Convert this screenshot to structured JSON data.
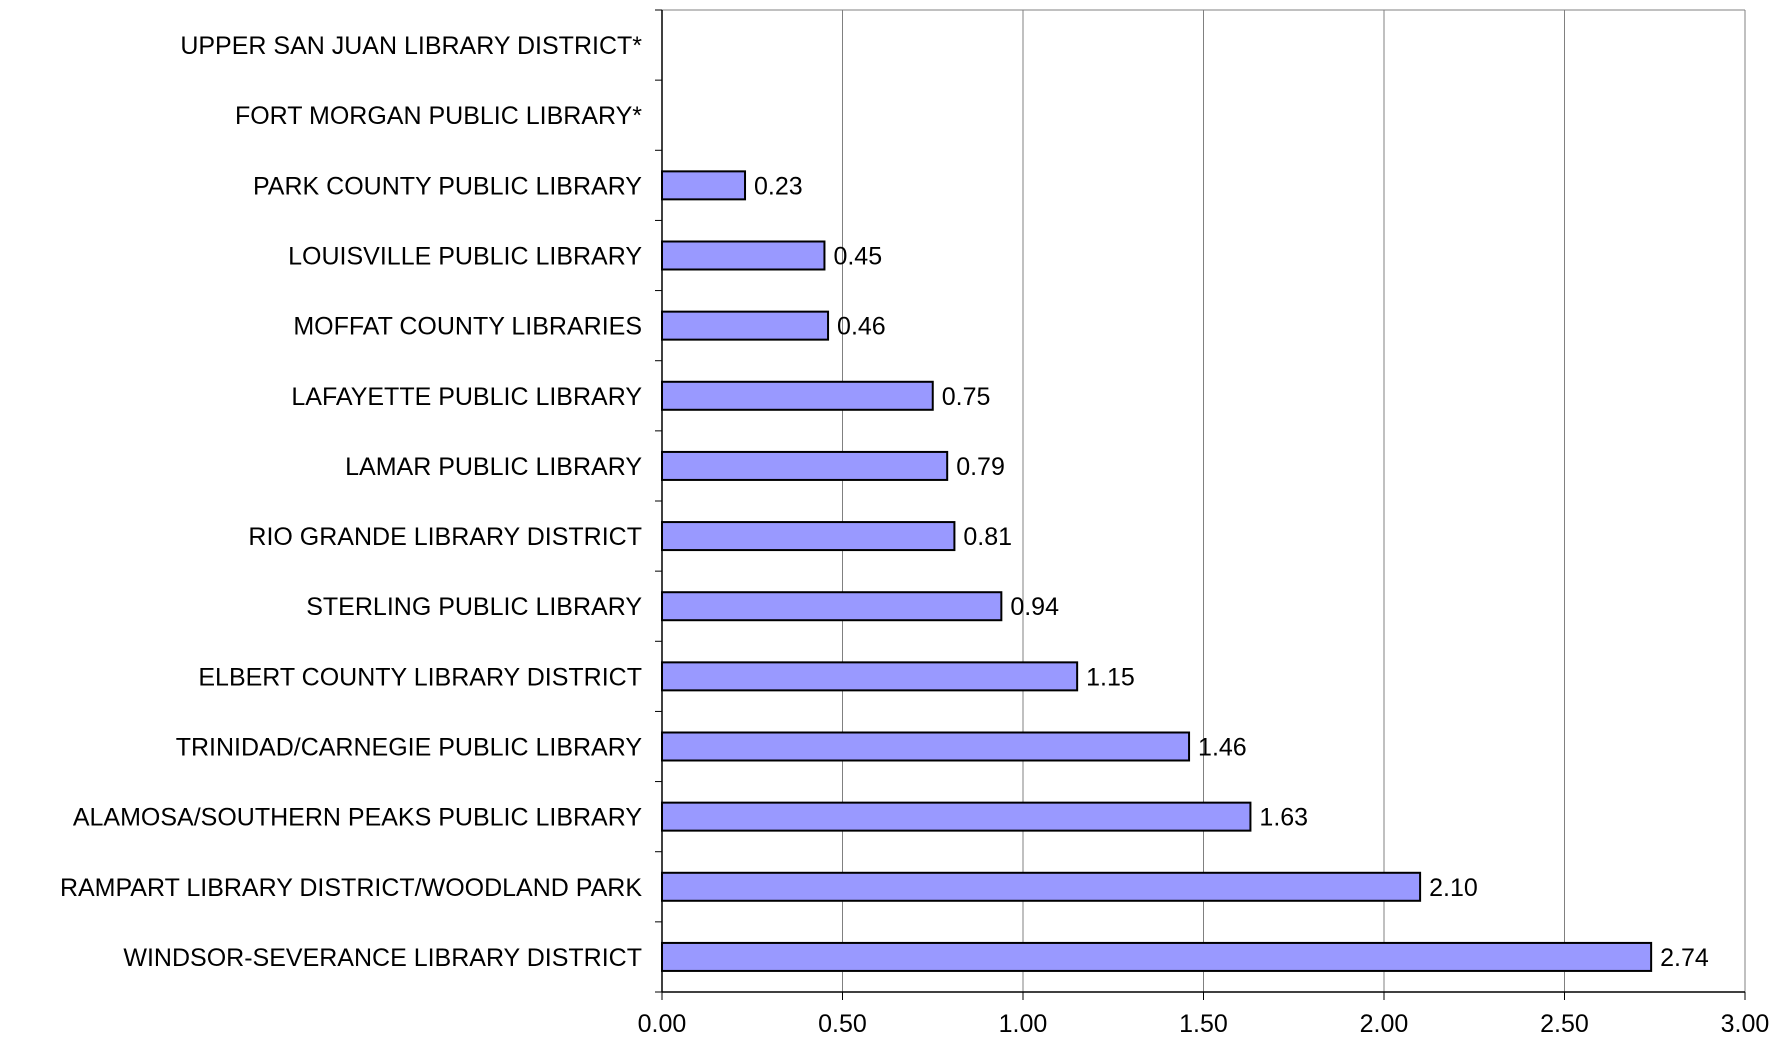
{
  "chart_data": {
    "type": "bar",
    "orientation": "horizontal",
    "categories": [
      "UPPER SAN JUAN LIBRARY DISTRICT*",
      "FORT MORGAN PUBLIC LIBRARY*",
      "PARK COUNTY PUBLIC LIBRARY",
      "LOUISVILLE PUBLIC LIBRARY",
      "MOFFAT COUNTY LIBRARIES",
      "LAFAYETTE PUBLIC LIBRARY",
      "LAMAR PUBLIC LIBRARY",
      "RIO GRANDE LIBRARY DISTRICT",
      "STERLING PUBLIC LIBRARY",
      "ELBERT COUNTY LIBRARY DISTRICT",
      "TRINIDAD/CARNEGIE PUBLIC LIBRARY",
      "ALAMOSA/SOUTHERN PEAKS PUBLIC LIBRARY",
      "RAMPART LIBRARY DISTRICT/WOODLAND PARK",
      "WINDSOR-SEVERANCE LIBRARY DISTRICT"
    ],
    "values": [
      null,
      null,
      0.23,
      0.45,
      0.46,
      0.75,
      0.79,
      0.81,
      0.94,
      1.15,
      1.46,
      1.63,
      2.1,
      2.74
    ],
    "data_labels": [
      "",
      "",
      "0.23",
      "0.45",
      "0.46",
      "0.75",
      "0.79",
      "0.81",
      "0.94",
      "1.15",
      "1.46",
      "1.63",
      "2.10",
      "2.74"
    ],
    "xlim": [
      0,
      3.0
    ],
    "x_ticks": [
      0,
      0.5,
      1.0,
      1.5,
      2.0,
      2.5,
      3.0
    ],
    "x_tick_labels": [
      "0.00",
      "0.50",
      "1.00",
      "1.50",
      "2.00",
      "2.50",
      "3.00"
    ],
    "title": "",
    "xlabel": "",
    "ylabel": "",
    "grid": "vertical",
    "legend": "none",
    "colors": {
      "bar_fill": "#9999ff",
      "bar_stroke": "#000000",
      "grid": "#808080",
      "axis": "#000000"
    }
  }
}
